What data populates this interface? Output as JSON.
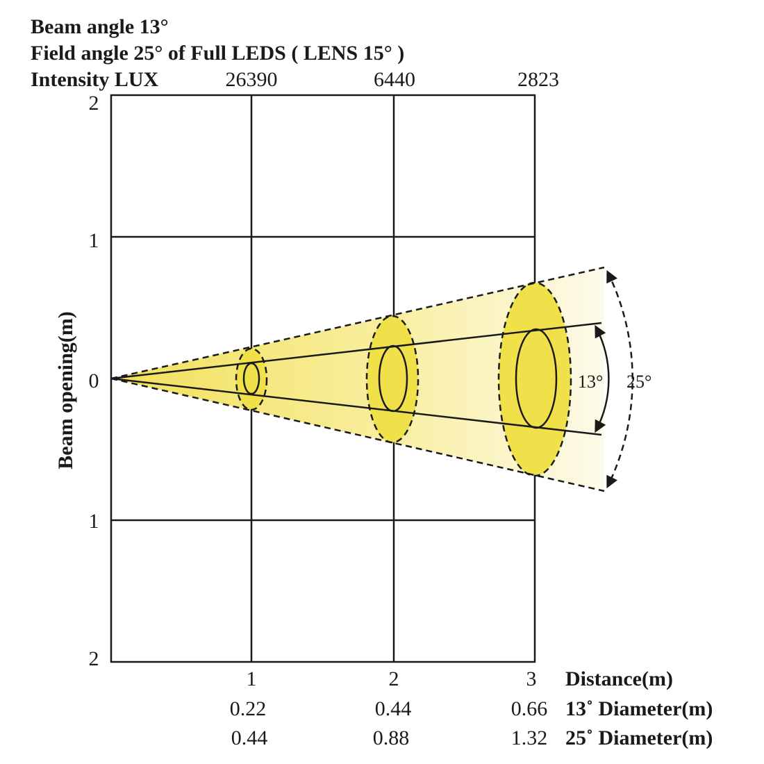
{
  "header": {
    "beam_angle": "Beam angle  13°",
    "field_angle": "Field angle  25°  of Full LEDS ( LENS 15°  )",
    "intensity_label": "Intensity LUX"
  },
  "y_axis": {
    "label": "Beam opening(m)",
    "ticks": [
      "2",
      "1",
      "0",
      "1",
      "2"
    ]
  },
  "x_axis": {
    "label": "Distance(m)",
    "ticks": [
      "1",
      "2",
      "3"
    ]
  },
  "intensity_values": [
    "26390",
    "6440",
    "2823"
  ],
  "rows": [
    {
      "label": "13˚ Diameter(m)",
      "values": [
        "0.22",
        "0.44",
        "0.66"
      ]
    },
    {
      "label": "25˚ Diameter(m)",
      "values": [
        "0.44",
        "0.88",
        "1.32"
      ]
    }
  ],
  "angle_labels": {
    "beam": "13°",
    "field": "25°"
  },
  "colors": {
    "beam_fill": "#f0e14a",
    "cone_fill": "#f6e98a",
    "line": "#1a1a1a"
  }
}
